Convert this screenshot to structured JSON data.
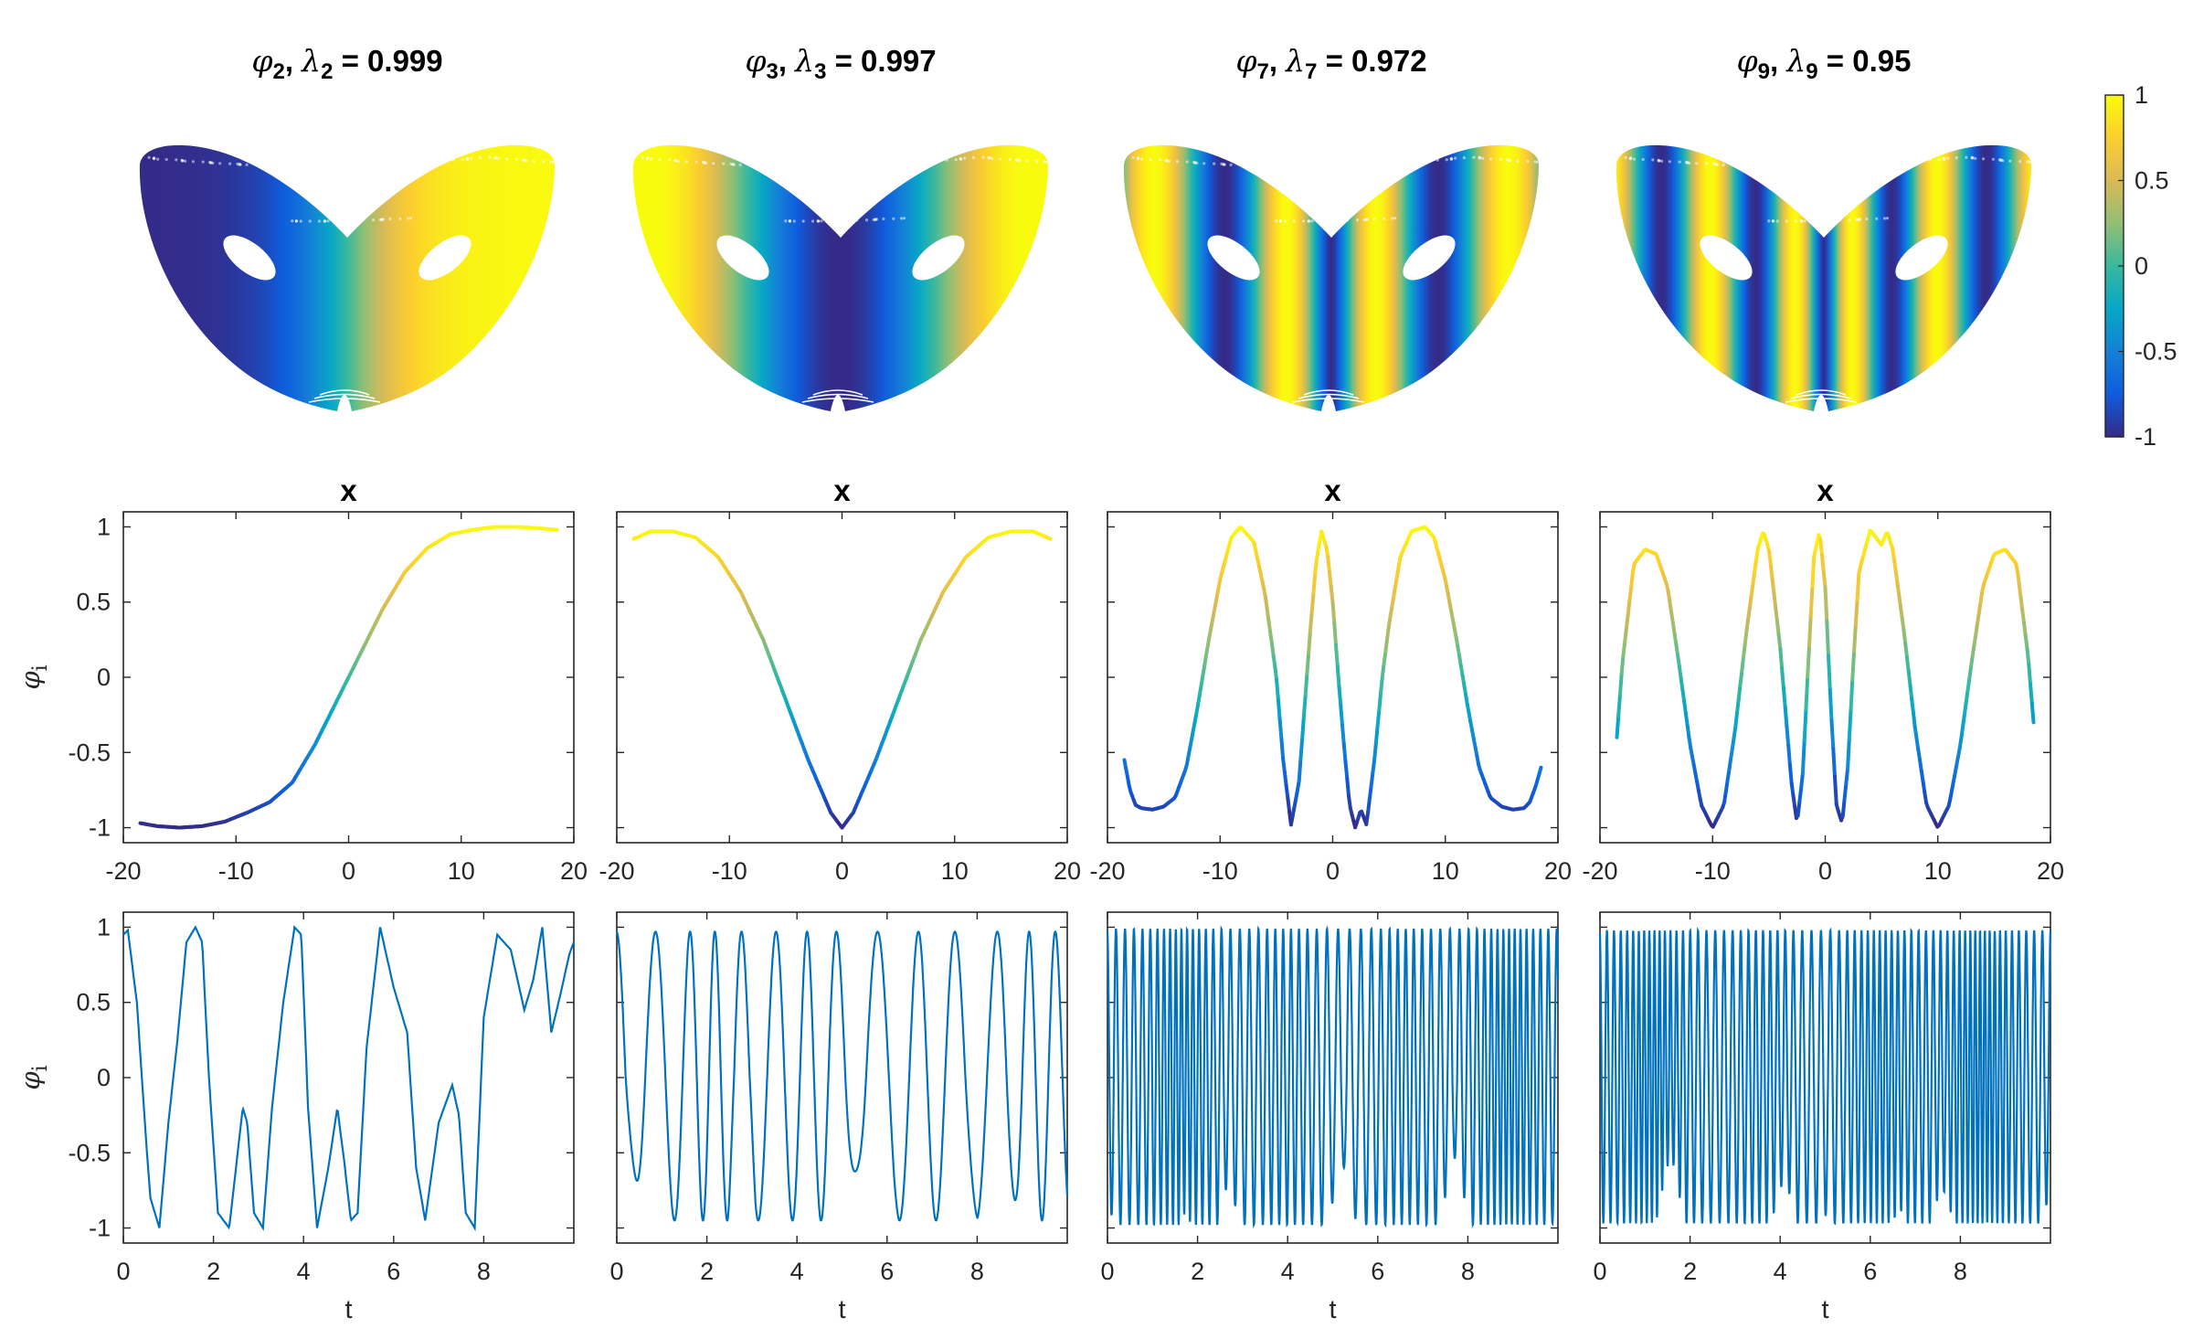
{
  "chart_data": [
    {
      "type": "scatter",
      "name": "attractor-phi2",
      "title": {
        "sym": "φ",
        "sub": "2",
        "sym2": "λ",
        "sub2": "2",
        "value": "0.999"
      },
      "mode": 2,
      "colormap": "parula",
      "clim": [
        -1,
        1
      ]
    },
    {
      "type": "scatter",
      "name": "attractor-phi3",
      "title": {
        "sym": "φ",
        "sub": "3",
        "sym2": "λ",
        "sub2": "3",
        "value": "0.997"
      },
      "mode": 3,
      "colormap": "parula",
      "clim": [
        -1,
        1
      ]
    },
    {
      "type": "scatter",
      "name": "attractor-phi7",
      "title": {
        "sym": "φ",
        "sub": "7",
        "sym2": "λ",
        "sub2": "7",
        "value": "0.972"
      },
      "mode": 7,
      "colormap": "parula",
      "clim": [
        -1,
        1
      ]
    },
    {
      "type": "scatter",
      "name": "attractor-phi9",
      "title": {
        "sym": "φ",
        "sub": "9",
        "sym2": "λ",
        "sub2": "9",
        "value": "0.95"
      },
      "mode": 9,
      "colormap": "parula",
      "clim": [
        -1,
        1
      ]
    },
    {
      "type": "line",
      "name": "phi2-vs-x",
      "title": "x",
      "ylabel": "φ",
      "ylabel_sub": "i",
      "xlim": [
        -20,
        20
      ],
      "ylim": [
        -1.1,
        1.1
      ],
      "xticks": [
        "-20",
        "-10",
        "0",
        "10",
        "20"
      ],
      "yticks": [
        "1",
        "0.5",
        "0",
        "-0.5",
        "-1"
      ],
      "x": [
        -18.5,
        -17,
        -15,
        -13,
        -11,
        -9,
        -7,
        -5,
        -3,
        -1,
        0,
        1,
        3,
        5,
        7,
        9,
        11,
        13,
        15,
        17,
        18.5
      ],
      "values": [
        -0.97,
        -0.99,
        -1,
        -0.99,
        -0.96,
        -0.9,
        -0.83,
        -0.7,
        -0.45,
        -0.15,
        0,
        0.15,
        0.45,
        0.7,
        0.86,
        0.95,
        0.98,
        1,
        1,
        0.99,
        0.98
      ]
    },
    {
      "type": "line",
      "name": "phi3-vs-x",
      "title": "x",
      "xlim": [
        -20,
        20
      ],
      "ylim": [
        -1.1,
        1.1
      ],
      "xticks": [
        "-20",
        "-10",
        "0",
        "10",
        "20"
      ],
      "x": [
        -18.5,
        -17,
        -15,
        -13,
        -11,
        -9,
        -7,
        -5,
        -3,
        -1,
        0,
        1,
        3,
        5,
        7,
        9,
        11,
        13,
        15,
        17,
        18.5
      ],
      "values": [
        0.92,
        0.97,
        0.97,
        0.93,
        0.8,
        0.57,
        0.25,
        -0.15,
        -0.55,
        -0.9,
        -1,
        -0.9,
        -0.55,
        -0.15,
        0.25,
        0.57,
        0.8,
        0.93,
        0.97,
        0.97,
        0.92
      ]
    },
    {
      "type": "line",
      "name": "phi7-vs-x",
      "title": "x",
      "xlim": [
        -20,
        20
      ],
      "ylim": [
        -1.1,
        1.1
      ],
      "xticks": [
        "-20",
        "-10",
        "0",
        "10",
        "20"
      ],
      "x": [
        -18.5,
        -18,
        -17.5,
        -17,
        -16,
        -15,
        -14,
        -13,
        -12,
        -11,
        -10,
        -9,
        -8.2,
        -7,
        -6,
        -5,
        -4.4,
        -3.7,
        -3,
        -2.5,
        -2,
        -1.5,
        -1,
        -0.5,
        0,
        0.5,
        1,
        1.5,
        2,
        2.5,
        3,
        3.7,
        4.4,
        5,
        6,
        7,
        8.2,
        9,
        10,
        11,
        12,
        13,
        14,
        15,
        16,
        17,
        17.5,
        18,
        18.5
      ],
      "values": [
        -0.55,
        -0.75,
        -0.85,
        -0.87,
        -0.88,
        -0.86,
        -0.8,
        -0.6,
        -0.2,
        0.25,
        0.65,
        0.93,
        1,
        0.9,
        0.55,
        0.0,
        -0.55,
        -0.98,
        -0.7,
        -0.2,
        0.3,
        0.75,
        0.97,
        0.85,
        0.5,
        0.0,
        -0.45,
        -0.85,
        -1.0,
        -0.88,
        -0.98,
        -0.55,
        0.0,
        0.35,
        0.8,
        0.97,
        1,
        0.93,
        0.65,
        0.25,
        -0.2,
        -0.6,
        -0.8,
        -0.86,
        -0.88,
        -0.87,
        -0.83,
        -0.73,
        -0.6
      ]
    },
    {
      "type": "line",
      "name": "phi9-vs-x",
      "title": "x",
      "xlim": [
        -20,
        20
      ],
      "ylim": [
        -1.1,
        1.1
      ],
      "xticks": [
        "-20",
        "-10",
        "0",
        "10",
        "20"
      ],
      "x": [
        -18.5,
        -18,
        -17,
        -16,
        -15,
        -14,
        -13,
        -12,
        -11,
        -10,
        -9,
        -8,
        -7,
        -6,
        -5.5,
        -5,
        -4,
        -3,
        -2.5,
        -2,
        -1.5,
        -1,
        -0.5,
        0,
        0.5,
        1,
        1.5,
        2,
        2.5,
        3,
        4,
        5,
        5.5,
        6,
        7,
        8,
        9,
        10,
        11,
        12,
        13,
        14,
        15,
        16,
        17,
        18,
        18.5
      ],
      "values": [
        -0.4,
        0.1,
        0.75,
        0.85,
        0.82,
        0.6,
        0.1,
        -0.45,
        -0.85,
        -1.0,
        -0.85,
        -0.35,
        0.3,
        0.85,
        0.97,
        0.85,
        0.2,
        -0.7,
        -0.97,
        -0.65,
        0.1,
        0.8,
        0.97,
        0.6,
        -0.2,
        -0.85,
        -0.97,
        -0.6,
        0.1,
        0.7,
        0.98,
        0.88,
        0.97,
        0.85,
        0.3,
        -0.35,
        -0.85,
        -1.0,
        -0.85,
        -0.45,
        0.1,
        0.6,
        0.82,
        0.85,
        0.75,
        0.15,
        -0.3
      ]
    },
    {
      "type": "line",
      "name": "phi2-vs-t",
      "xlabel": "t",
      "ylabel": "φ",
      "ylabel_sub": "i",
      "xlim": [
        0,
        10
      ],
      "ylim": [
        -1.1,
        1.1
      ],
      "xticks": [
        "0",
        "2",
        "4",
        "6",
        "8"
      ],
      "yticks": [
        "1",
        "0.5",
        "0",
        "-0.5",
        "-1"
      ],
      "x": [
        0,
        0.1,
        0.3,
        0.5,
        0.6,
        0.8,
        1.0,
        1.2,
        1.4,
        1.6,
        1.75,
        1.9,
        2.1,
        2.35,
        2.5,
        2.65,
        2.75,
        2.9,
        3.1,
        3.3,
        3.55,
        3.8,
        3.95,
        4.1,
        4.3,
        4.55,
        4.75,
        4.9,
        5.05,
        5.2,
        5.4,
        5.7,
        6.0,
        6.3,
        6.5,
        6.7,
        7.0,
        7.3,
        7.45,
        7.6,
        7.8,
        8.0,
        8.3,
        8.6,
        8.9,
        9.1,
        9.3,
        9.5,
        9.7,
        9.9,
        10
      ],
      "values": [
        0.95,
        0.98,
        0.5,
        -0.4,
        -0.8,
        -1,
        -0.3,
        0.25,
        0.9,
        1,
        0.9,
        0.0,
        -0.9,
        -1,
        -0.6,
        -0.2,
        -0.3,
        -0.9,
        -1,
        -0.2,
        0.5,
        1.0,
        0.95,
        -0.2,
        -1,
        -0.6,
        -0.2,
        -0.55,
        -0.95,
        -0.9,
        0.2,
        1.0,
        0.6,
        0.3,
        -0.6,
        -0.95,
        -0.3,
        -0.05,
        -0.25,
        -0.9,
        -1,
        0.4,
        0.95,
        0.85,
        0.45,
        0.65,
        1.0,
        0.3,
        0.55,
        0.82,
        0.9
      ]
    },
    {
      "type": "line",
      "name": "phi3-vs-t",
      "xlabel": "t",
      "xlim": [
        0,
        10
      ],
      "ylim": [
        -1.1,
        1.1
      ],
      "xticks": [
        "0",
        "2",
        "4",
        "6",
        "8"
      ],
      "period": 0.78,
      "amplitude": [
        -0.95,
        0.97
      ]
    },
    {
      "type": "line",
      "name": "phi7-vs-t",
      "xlabel": "t",
      "xlim": [
        0,
        10
      ],
      "ylim": [
        -1.1,
        1.1
      ],
      "xticks": [
        "0",
        "2",
        "4",
        "6",
        "8"
      ],
      "period": 0.19,
      "amplitude": [
        -0.98,
        0.99
      ]
    },
    {
      "type": "line",
      "name": "phi9-vs-t",
      "xlabel": "t",
      "xlim": [
        0,
        10
      ],
      "ylim": [
        -1.1,
        1.1
      ],
      "xticks": [
        "0",
        "2",
        "4",
        "6",
        "8"
      ],
      "period": 0.16,
      "amplitude": [
        -0.97,
        0.98
      ]
    }
  ],
  "colorbar": {
    "ticks": [
      "1",
      "0.5",
      "0",
      "-0.5",
      "-1"
    ],
    "range": [
      -1,
      1
    ]
  },
  "colors": {
    "line": "#0072BD",
    "parula": [
      "#352A87",
      "#0F5CDD",
      "#1481D6",
      "#06A7C6",
      "#38B99E",
      "#92BF73",
      "#D9BA56",
      "#FCCE2E",
      "#F9FB0E"
    ]
  }
}
